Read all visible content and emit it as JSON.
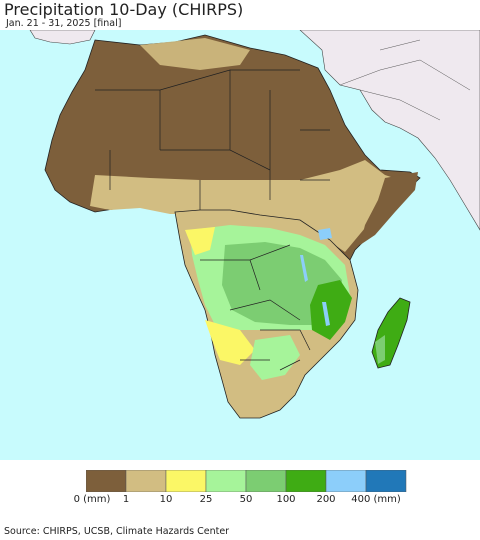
{
  "title": "Precipitation 10-Day (CHIRPS)",
  "subtitle": "Jan. 21 - 31, 2025 [final]",
  "legend": {
    "colors": [
      "#7d5f3b",
      "#d2bd82",
      "#fbf766",
      "#a6f49a",
      "#7ccd72",
      "#3fac14",
      "#8ccefa",
      "#2178b8"
    ],
    "labels": [
      "0 (mm)",
      "1",
      "10",
      "25",
      "50",
      "100",
      "200",
      "400 (mm)"
    ]
  },
  "colors": {
    "ocean": "#c8fbfd",
    "outside_region": "#efe9ef",
    "border": "#111111"
  },
  "source": "Source: CHIRPS, UCSB, Climate Hazards Center"
}
